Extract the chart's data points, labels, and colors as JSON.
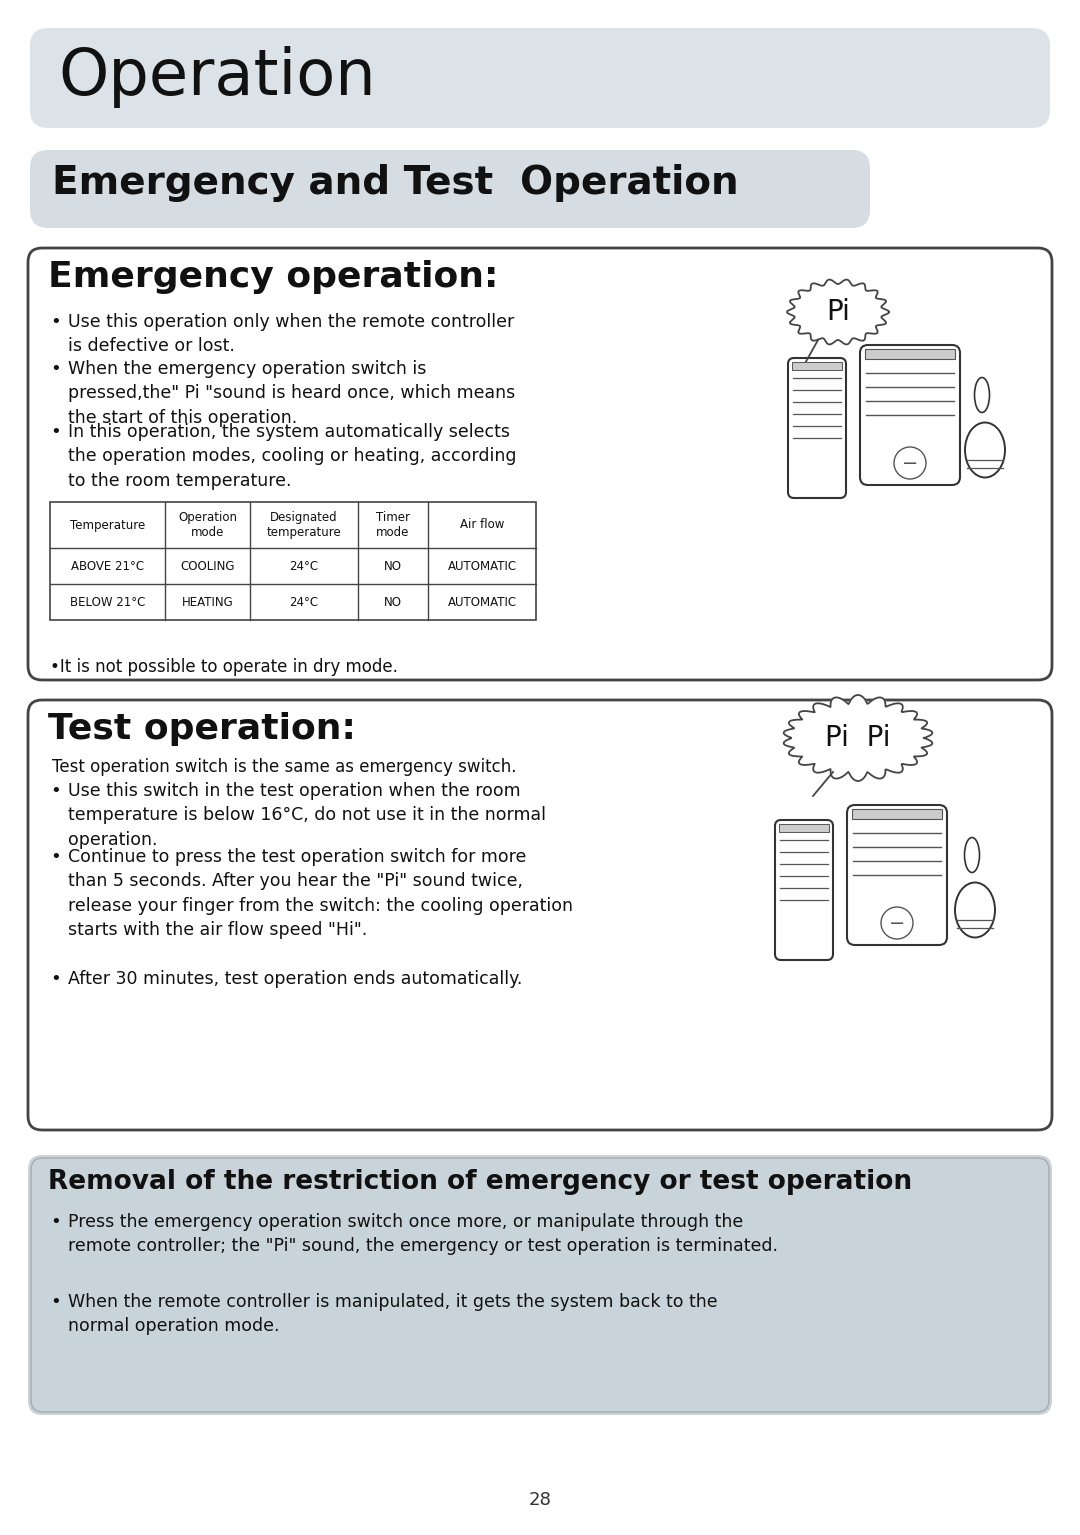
{
  "page_bg": "#ffffff",
  "title_bg": "#dce3e8",
  "subtitle_bg": "#d5dde3",
  "box_bg": "#ffffff",
  "box_border": "#444444",
  "removal_bg": "#c8d4da",
  "title_text": "Operation",
  "subtitle_text": "Emergency and Test  Operation",
  "emergency_title": "Emergency operation:",
  "test_title": "Test operation:",
  "removal_title": "Removal of the restriction of emergency or test operation",
  "emergency_bullet1": "Use this operation only when the remote controller\nis defective or lost.",
  "emergency_bullet2": "When the emergency operation switch is\npressed,the\" Pi \"sound is heard once, which means\nthe start of this operation.",
  "emergency_bullet3": "In this operation, the system automatically selects\nthe operation modes, cooling or heating, according\nto the room temperature.",
  "dry_mode_note": "•It is not possible to operate in dry mode.",
  "table_headers": [
    "Temperature",
    "Operation\nmode",
    "Designated\ntemperature",
    "Timer\nmode",
    "Air flow"
  ],
  "table_row1": [
    "ABOVE 21°C",
    "COOLING",
    "24°C",
    "NO",
    "AUTOMATIC"
  ],
  "table_row2": [
    "BELOW 21°C",
    "HEATING",
    "24°C",
    "NO",
    "AUTOMATIC"
  ],
  "test_intro": "Test operation switch is the same as emergency switch.",
  "test_bullet1": "Use this switch in the test operation when the room\ntemperature is below 16°C, do not use it in the normal\noperation.",
  "test_bullet2": "Continue to press the test operation switch for more\nthan 5 seconds. After you hear the \"Pi\" sound twice,\nrelease your finger from the switch: the cooling operation\nstarts with the air flow speed \"Hi\".",
  "test_bullet3": "After 30 minutes, test operation ends automatically.",
  "removal_bullet1": "Press the emergency operation switch once more, or manipulate through the\nremote controller; the \"Pi\" sound, the emergency or test operation is terminated.",
  "removal_bullet2": "When the remote controller is manipulated, it gets the system back to the\nnormal operation mode.",
  "page_number": "28"
}
